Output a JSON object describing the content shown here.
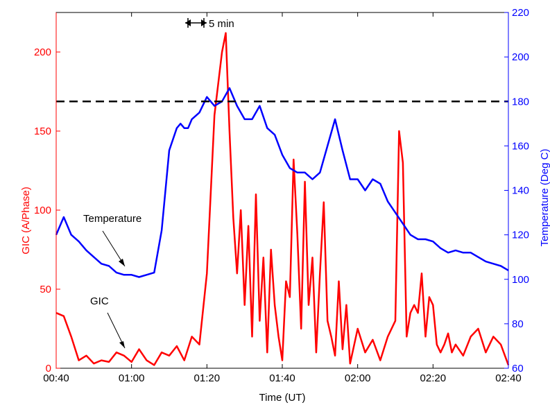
{
  "chart_data": {
    "type": "line",
    "title": "",
    "xlabel": "Time (UT)",
    "ylabel_left": "GIC (A/Phase)",
    "ylabel_right": "Temperature (Deg C)",
    "x_unit": "minutes after 00:40 UT",
    "xlim": [
      "00:40",
      "02:40"
    ],
    "x_ticks": [
      "00:40",
      "01:00",
      "01:20",
      "01:40",
      "02:00",
      "02:20",
      "02:40"
    ],
    "ylim_left": [
      0,
      225
    ],
    "y_ticks_left": [
      "0",
      "50",
      "100",
      "150",
      "200"
    ],
    "ylim_right": [
      60,
      220
    ],
    "y_ticks_right": [
      "60",
      "80",
      "100",
      "120",
      "140",
      "160",
      "180",
      "200",
      "220"
    ],
    "grid": false,
    "reference_line": {
      "axis": "right",
      "value": 180,
      "style": "dashed",
      "color": "#000000"
    },
    "colors": {
      "gic": "#ff0000",
      "temperature": "#0000ff",
      "left_axis": "#ff0000",
      "right_axis": "#0000ff",
      "frame": "#000000"
    },
    "annotations": {
      "temperature_label": "Temperature",
      "gic_label": "GIC",
      "duration_label": "5 min"
    },
    "series": [
      {
        "name": "GIC",
        "axis": "left",
        "x": [
          0,
          2,
          4,
          6,
          8,
          10,
          12,
          14,
          16,
          18,
          20,
          22,
          24,
          26,
          28,
          30,
          32,
          34,
          36,
          38,
          40,
          42,
          44,
          45,
          46,
          47,
          48,
          49,
          50,
          51,
          52,
          53,
          54,
          55,
          56,
          57,
          58,
          59,
          60,
          61,
          62,
          63,
          64,
          65,
          66,
          67,
          68,
          69,
          70,
          71,
          72,
          73,
          74,
          75,
          76,
          77,
          78,
          80,
          82,
          84,
          86,
          88,
          90,
          91,
          92,
          93,
          94,
          95,
          96,
          97,
          98,
          99,
          100,
          101,
          102,
          103,
          104,
          105,
          106,
          108,
          110,
          112,
          114,
          116,
          118,
          120
        ],
        "values": [
          35,
          33,
          20,
          5,
          8,
          3,
          5,
          4,
          10,
          8,
          4,
          12,
          5,
          2,
          10,
          8,
          14,
          5,
          20,
          15,
          60,
          160,
          200,
          212,
          150,
          95,
          60,
          100,
          40,
          90,
          20,
          110,
          30,
          70,
          10,
          75,
          40,
          20,
          5,
          55,
          45,
          132,
          85,
          25,
          118,
          40,
          70,
          10,
          60,
          105,
          30,
          20,
          8,
          55,
          12,
          40,
          3,
          25,
          10,
          18,
          5,
          20,
          30,
          150,
          130,
          20,
          35,
          40,
          35,
          60,
          20,
          45,
          40,
          15,
          10,
          15,
          22,
          10,
          15,
          8,
          20,
          25,
          10,
          20,
          15,
          2
        ]
      },
      {
        "name": "Temperature",
        "axis": "right",
        "x": [
          0,
          2,
          4,
          6,
          8,
          10,
          12,
          14,
          16,
          18,
          20,
          22,
          24,
          26,
          28,
          30,
          32,
          33,
          34,
          35,
          36,
          38,
          40,
          42,
          44,
          46,
          48,
          50,
          52,
          54,
          56,
          58,
          60,
          62,
          64,
          66,
          68,
          70,
          72,
          74,
          76,
          78,
          80,
          82,
          84,
          86,
          88,
          90,
          92,
          94,
          96,
          98,
          100,
          102,
          104,
          106,
          108,
          110,
          112,
          114,
          116,
          118,
          120
        ],
        "values": [
          120,
          128,
          120,
          117,
          113,
          110,
          107,
          106,
          103,
          102,
          102,
          101,
          102,
          103,
          122,
          158,
          168,
          170,
          168,
          168,
          172,
          175,
          182,
          178,
          180,
          186,
          178,
          172,
          172,
          178,
          168,
          165,
          156,
          150,
          148,
          148,
          145,
          148,
          160,
          172,
          158,
          145,
          145,
          140,
          145,
          143,
          135,
          130,
          125,
          120,
          118,
          118,
          117,
          114,
          112,
          113,
          112,
          112,
          110,
          108,
          107,
          106,
          104
        ]
      }
    ]
  }
}
